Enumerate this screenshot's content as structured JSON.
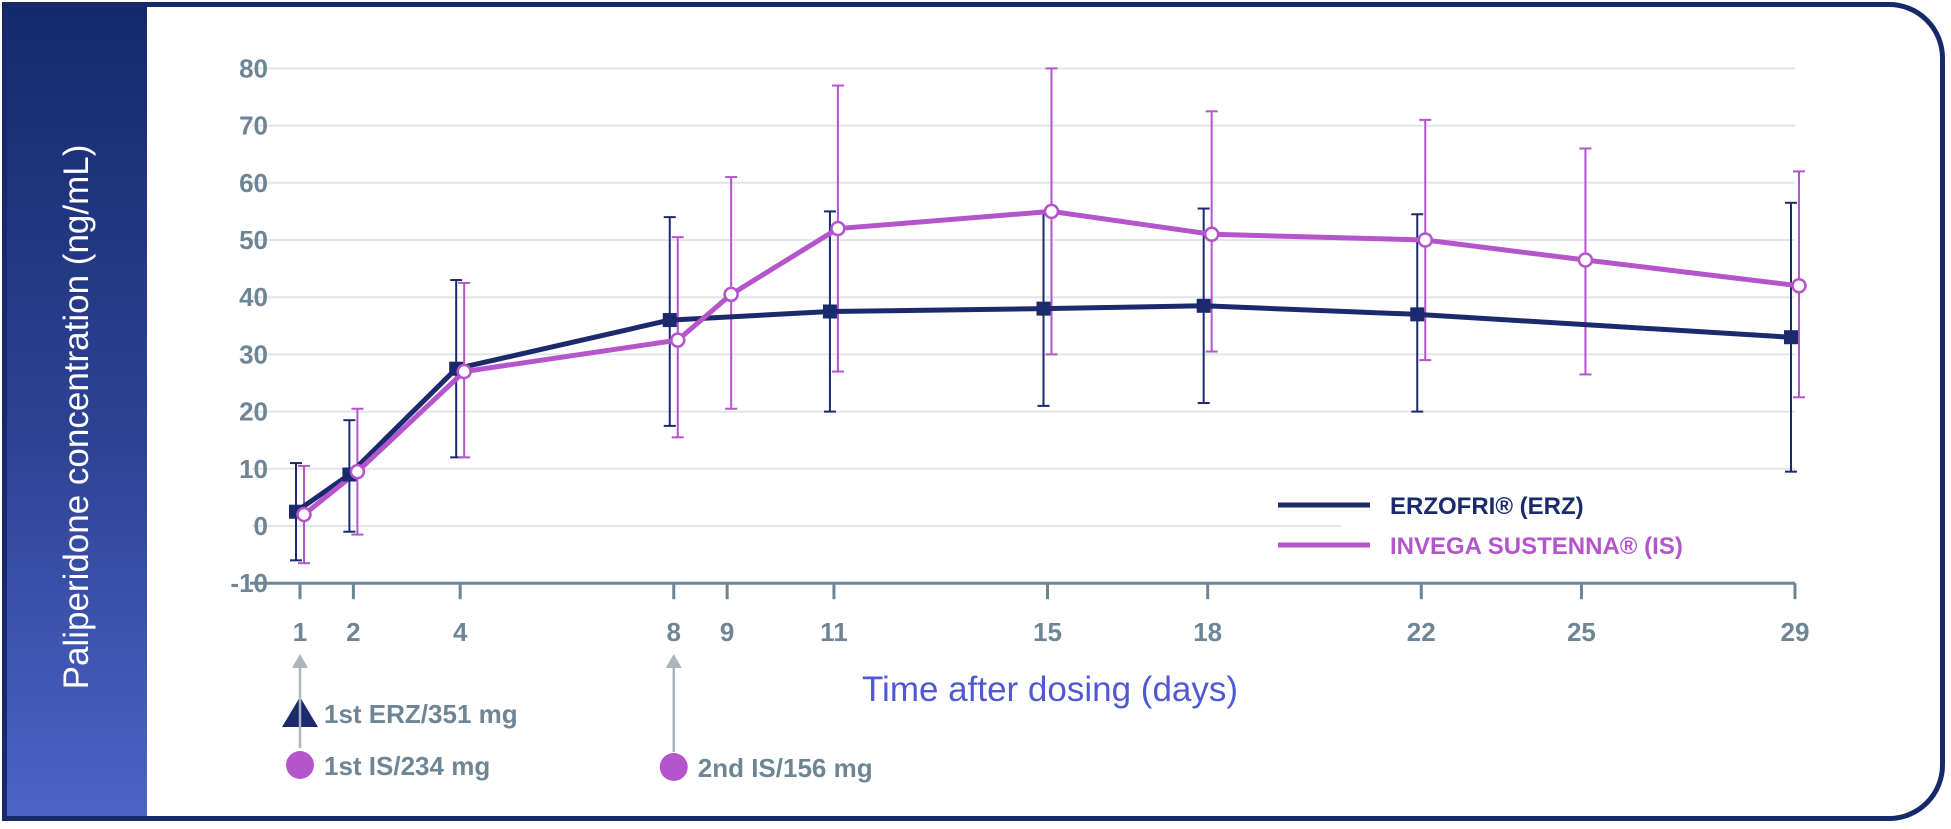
{
  "chart_data": {
    "type": "line",
    "xlabel": "Time after dosing (days)",
    "ylabel": "Paliperidone concentration (ng/mL)",
    "xticks": [
      1,
      2,
      4,
      8,
      9,
      11,
      15,
      18,
      22,
      25,
      29
    ],
    "yticks": [
      -10,
      0,
      10,
      20,
      30,
      40,
      50,
      60,
      70,
      80
    ],
    "ylim": [
      -10,
      80
    ],
    "xlim": [
      1,
      29
    ],
    "grid": "horizontal",
    "legend_position": "lower-right",
    "series": [
      {
        "name": "ERZOFRI® (ERZ)",
        "color": "#1a2a6c",
        "marker": "filled-square",
        "x": [
          1,
          2,
          4,
          8,
          11,
          15,
          18,
          22,
          29
        ],
        "y": [
          2.5,
          9,
          27.5,
          36,
          37.5,
          38,
          38.5,
          37,
          33
        ],
        "error_low": [
          -6,
          -1,
          12,
          17.5,
          20,
          21,
          21.5,
          20,
          9.5
        ],
        "error_high": [
          11,
          18.5,
          43,
          54,
          55,
          55,
          55.5,
          54.5,
          56.5
        ]
      },
      {
        "name": "INVEGA SUSTENNA® (IS)",
        "color": "#b455cc",
        "marker": "open-circle",
        "x": [
          1,
          2,
          4,
          8,
          9,
          11,
          15,
          18,
          22,
          25,
          29
        ],
        "y": [
          2,
          9.5,
          27,
          32.5,
          40.5,
          52,
          55,
          51,
          50,
          46.5,
          42
        ],
        "error_low": [
          -6.5,
          -1.5,
          12,
          15.5,
          20.5,
          27,
          30,
          30.5,
          29,
          26.5,
          22.5
        ],
        "error_high": [
          10.5,
          20.5,
          42.5,
          50.5,
          61,
          77,
          80,
          72.5,
          71,
          66,
          62
        ]
      }
    ],
    "dose_annotations": [
      {
        "day": 1,
        "label": "1st ERZ/351 mg",
        "marker": "triangle",
        "color": "#1a2a6c"
      },
      {
        "day": 1,
        "label": "1st IS/234 mg",
        "marker": "circle",
        "color": "#b455cc"
      },
      {
        "day": 8,
        "label": "2nd IS/156 mg",
        "marker": "circle",
        "color": "#b455cc"
      }
    ]
  }
}
